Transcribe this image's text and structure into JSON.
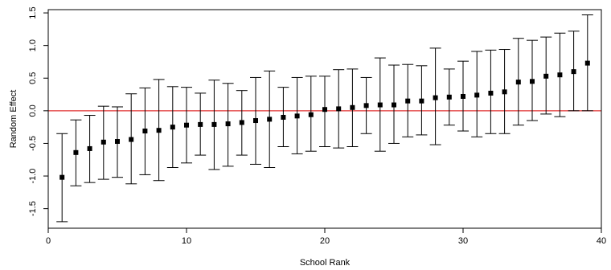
{
  "chart_data": {
    "type": "scatter",
    "title": "",
    "xlabel": "School Rank",
    "ylabel": "Random Effect",
    "xlim": [
      0,
      40
    ],
    "ylim": [
      -1.8,
      1.55
    ],
    "xticks": [
      0,
      10,
      20,
      30,
      40
    ],
    "yticks": [
      -1.5,
      -1.0,
      -0.5,
      0.0,
      0.5,
      1.0,
      1.5
    ],
    "xtick_labels": [
      "0",
      "10",
      "20",
      "30",
      "40"
    ],
    "ytick_labels": [
      "-1.5",
      "-1.0",
      "-0.5",
      "0.0",
      "0.5",
      "1.0",
      "1.5"
    ],
    "reference_line": {
      "y": 0,
      "color": "#e03030"
    },
    "grid": false,
    "legend": "none",
    "colors": {
      "points": "#000000",
      "error_bars": "#000000",
      "frame": "#000000"
    },
    "series": [
      {
        "x": [
          1,
          2,
          3,
          4,
          5,
          6,
          7,
          8,
          9,
          10,
          11,
          12,
          13,
          14,
          15,
          16,
          17,
          18,
          19,
          20,
          21,
          22,
          23,
          24,
          25,
          26,
          27,
          28,
          29,
          30,
          31,
          32,
          33,
          34,
          35,
          36,
          37,
          38,
          39
        ],
        "y": [
          -1.02,
          -0.64,
          -0.58,
          -0.48,
          -0.47,
          -0.44,
          -0.31,
          -0.3,
          -0.25,
          -0.22,
          -0.21,
          -0.21,
          -0.2,
          -0.18,
          -0.15,
          -0.13,
          -0.1,
          -0.08,
          -0.06,
          0.02,
          0.03,
          0.05,
          0.08,
          0.09,
          0.09,
          0.15,
          0.15,
          0.2,
          0.21,
          0.22,
          0.24,
          0.27,
          0.29,
          0.44,
          0.45,
          0.53,
          0.55,
          0.6,
          0.73
        ],
        "lower": [
          -1.7,
          -1.15,
          -1.1,
          -1.05,
          -1.02,
          -1.12,
          -0.98,
          -1.07,
          -0.87,
          -0.8,
          -0.68,
          -0.9,
          -0.85,
          -0.68,
          -0.82,
          -0.87,
          -0.55,
          -0.66,
          -0.62,
          -0.55,
          -0.57,
          -0.55,
          -0.35,
          -0.62,
          -0.5,
          -0.4,
          -0.37,
          -0.52,
          -0.22,
          -0.31,
          -0.4,
          -0.35,
          -0.35,
          -0.22,
          -0.15,
          -0.05,
          -0.09,
          0.0,
          0.0
        ],
        "upper": [
          -0.35,
          -0.14,
          -0.07,
          0.07,
          0.06,
          0.26,
          0.35,
          0.48,
          0.37,
          0.36,
          0.27,
          0.47,
          0.42,
          0.31,
          0.51,
          0.61,
          0.36,
          0.51,
          0.53,
          0.53,
          0.63,
          0.64,
          0.51,
          0.81,
          0.7,
          0.71,
          0.69,
          0.96,
          0.64,
          0.76,
          0.91,
          0.93,
          0.94,
          1.11,
          1.08,
          1.13,
          1.19,
          1.22,
          1.47
        ]
      }
    ]
  }
}
